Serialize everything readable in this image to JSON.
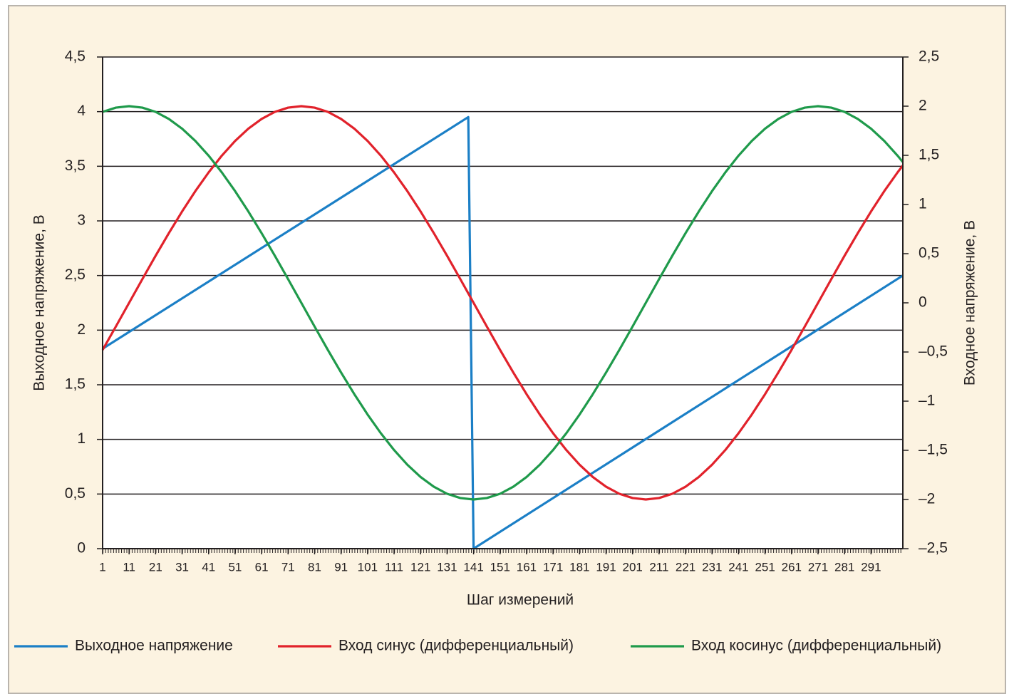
{
  "chart_data": {
    "type": "line",
    "y_label": "Выходное напряжение, В",
    "y2_label": "Входное напряжение, В",
    "x_label": "Шаг измерений",
    "xlim": [
      1,
      303
    ],
    "xticks": [
      1,
      11,
      21,
      31,
      41,
      51,
      61,
      71,
      81,
      91,
      101,
      111,
      121,
      131,
      141,
      151,
      161,
      171,
      181,
      191,
      201,
      211,
      221,
      231,
      241,
      251,
      261,
      271,
      281,
      291
    ],
    "ylim": [
      0,
      4.5
    ],
    "yticks": [
      0,
      {
        "value": 0.5,
        "label": "0,5"
      },
      1,
      {
        "value": 1.5,
        "label": "1,5"
      },
      2,
      {
        "value": 2.5,
        "label": "2,5"
      },
      3,
      {
        "value": 3.5,
        "label": "3,5"
      },
      4,
      {
        "value": 4.5,
        "label": "4,5"
      }
    ],
    "y2lim": [
      -2.5,
      2.5
    ],
    "y2ticks": [
      {
        "value": -2.5,
        "label": "–2,5"
      },
      {
        "value": -2,
        "label": "–2"
      },
      {
        "value": -1.5,
        "label": "–1,5"
      },
      {
        "value": -1,
        "label": "–1"
      },
      {
        "value": -0.5,
        "label": "–0,5"
      },
      0,
      {
        "value": 0.5,
        "label": "0,5"
      },
      1,
      {
        "value": 1.5,
        "label": "1,5"
      },
      2,
      {
        "value": 2.5,
        "label": "2,5"
      }
    ],
    "grid": true,
    "legend": "bottom",
    "series": [
      {
        "name": "Выходное напряжение",
        "color": "#1b7fc6",
        "axis": "y",
        "x": [
          1,
          139,
          141,
          303
        ],
        "values": [
          1.83,
          3.95,
          0,
          2.5
        ]
      },
      {
        "name": "Вход синус (дифференциальный)",
        "color": "#e1222b",
        "axis": "y2",
        "x": [
          1,
          6,
          11,
          16,
          21,
          26,
          31,
          36,
          41,
          46,
          51,
          56,
          61,
          66,
          71,
          76,
          81,
          86,
          91,
          96,
          101,
          106,
          111,
          116,
          121,
          126,
          131,
          136,
          141,
          146,
          151,
          156,
          161,
          166,
          171,
          176,
          181,
          186,
          191,
          196,
          201,
          206,
          211,
          216,
          221,
          226,
          231,
          236,
          241,
          246,
          251,
          256,
          261,
          266,
          271,
          276,
          281,
          286,
          291,
          296,
          301,
          303
        ],
        "values": [
          -0.479,
          -0.241,
          0,
          0.241,
          0.479,
          0.709,
          0.929,
          1.136,
          1.326,
          1.497,
          1.646,
          1.771,
          1.87,
          1.942,
          1.985,
          2,
          1.985,
          1.942,
          1.87,
          1.771,
          1.646,
          1.497,
          1.326,
          1.136,
          0.929,
          0.709,
          0.479,
          0.241,
          0,
          -0.241,
          -0.479,
          -0.709,
          -0.929,
          -1.136,
          -1.326,
          -1.497,
          -1.646,
          -1.771,
          -1.87,
          -1.942,
          -1.985,
          -2,
          -1.985,
          -1.942,
          -1.87,
          -1.771,
          -1.646,
          -1.497,
          -1.326,
          -1.136,
          -0.929,
          -0.709,
          -0.479,
          -0.241,
          0,
          0.241,
          0.479,
          0.709,
          0.929,
          1.136,
          1.326,
          1.397
        ]
      },
      {
        "name": "Вход косинус (дифференциальный)",
        "color": "#1f9a4b",
        "axis": "y2",
        "x": [
          1,
          6,
          11,
          16,
          21,
          26,
          31,
          36,
          41,
          46,
          51,
          56,
          61,
          66,
          71,
          76,
          81,
          86,
          91,
          96,
          101,
          106,
          111,
          116,
          121,
          126,
          131,
          136,
          141,
          146,
          151,
          156,
          161,
          166,
          171,
          176,
          181,
          186,
          191,
          196,
          201,
          206,
          211,
          216,
          221,
          226,
          231,
          236,
          241,
          246,
          251,
          256,
          261,
          266,
          271,
          276,
          281,
          286,
          291,
          296,
          301,
          303
        ],
        "values": [
          1.942,
          1.985,
          2,
          1.985,
          1.942,
          1.87,
          1.771,
          1.646,
          1.497,
          1.326,
          1.136,
          0.929,
          0.709,
          0.479,
          0.241,
          0,
          -0.241,
          -0.479,
          -0.709,
          -0.929,
          -1.136,
          -1.326,
          -1.497,
          -1.646,
          -1.771,
          -1.87,
          -1.942,
          -1.985,
          -2,
          -1.985,
          -1.942,
          -1.87,
          -1.771,
          -1.646,
          -1.497,
          -1.326,
          -1.136,
          -0.929,
          -0.709,
          -0.479,
          -0.241,
          0,
          0.241,
          0.479,
          0.709,
          0.929,
          1.136,
          1.326,
          1.497,
          1.646,
          1.771,
          1.87,
          1.942,
          1.985,
          2,
          1.985,
          1.942,
          1.87,
          1.771,
          1.646,
          1.497,
          1.431
        ]
      }
    ]
  }
}
